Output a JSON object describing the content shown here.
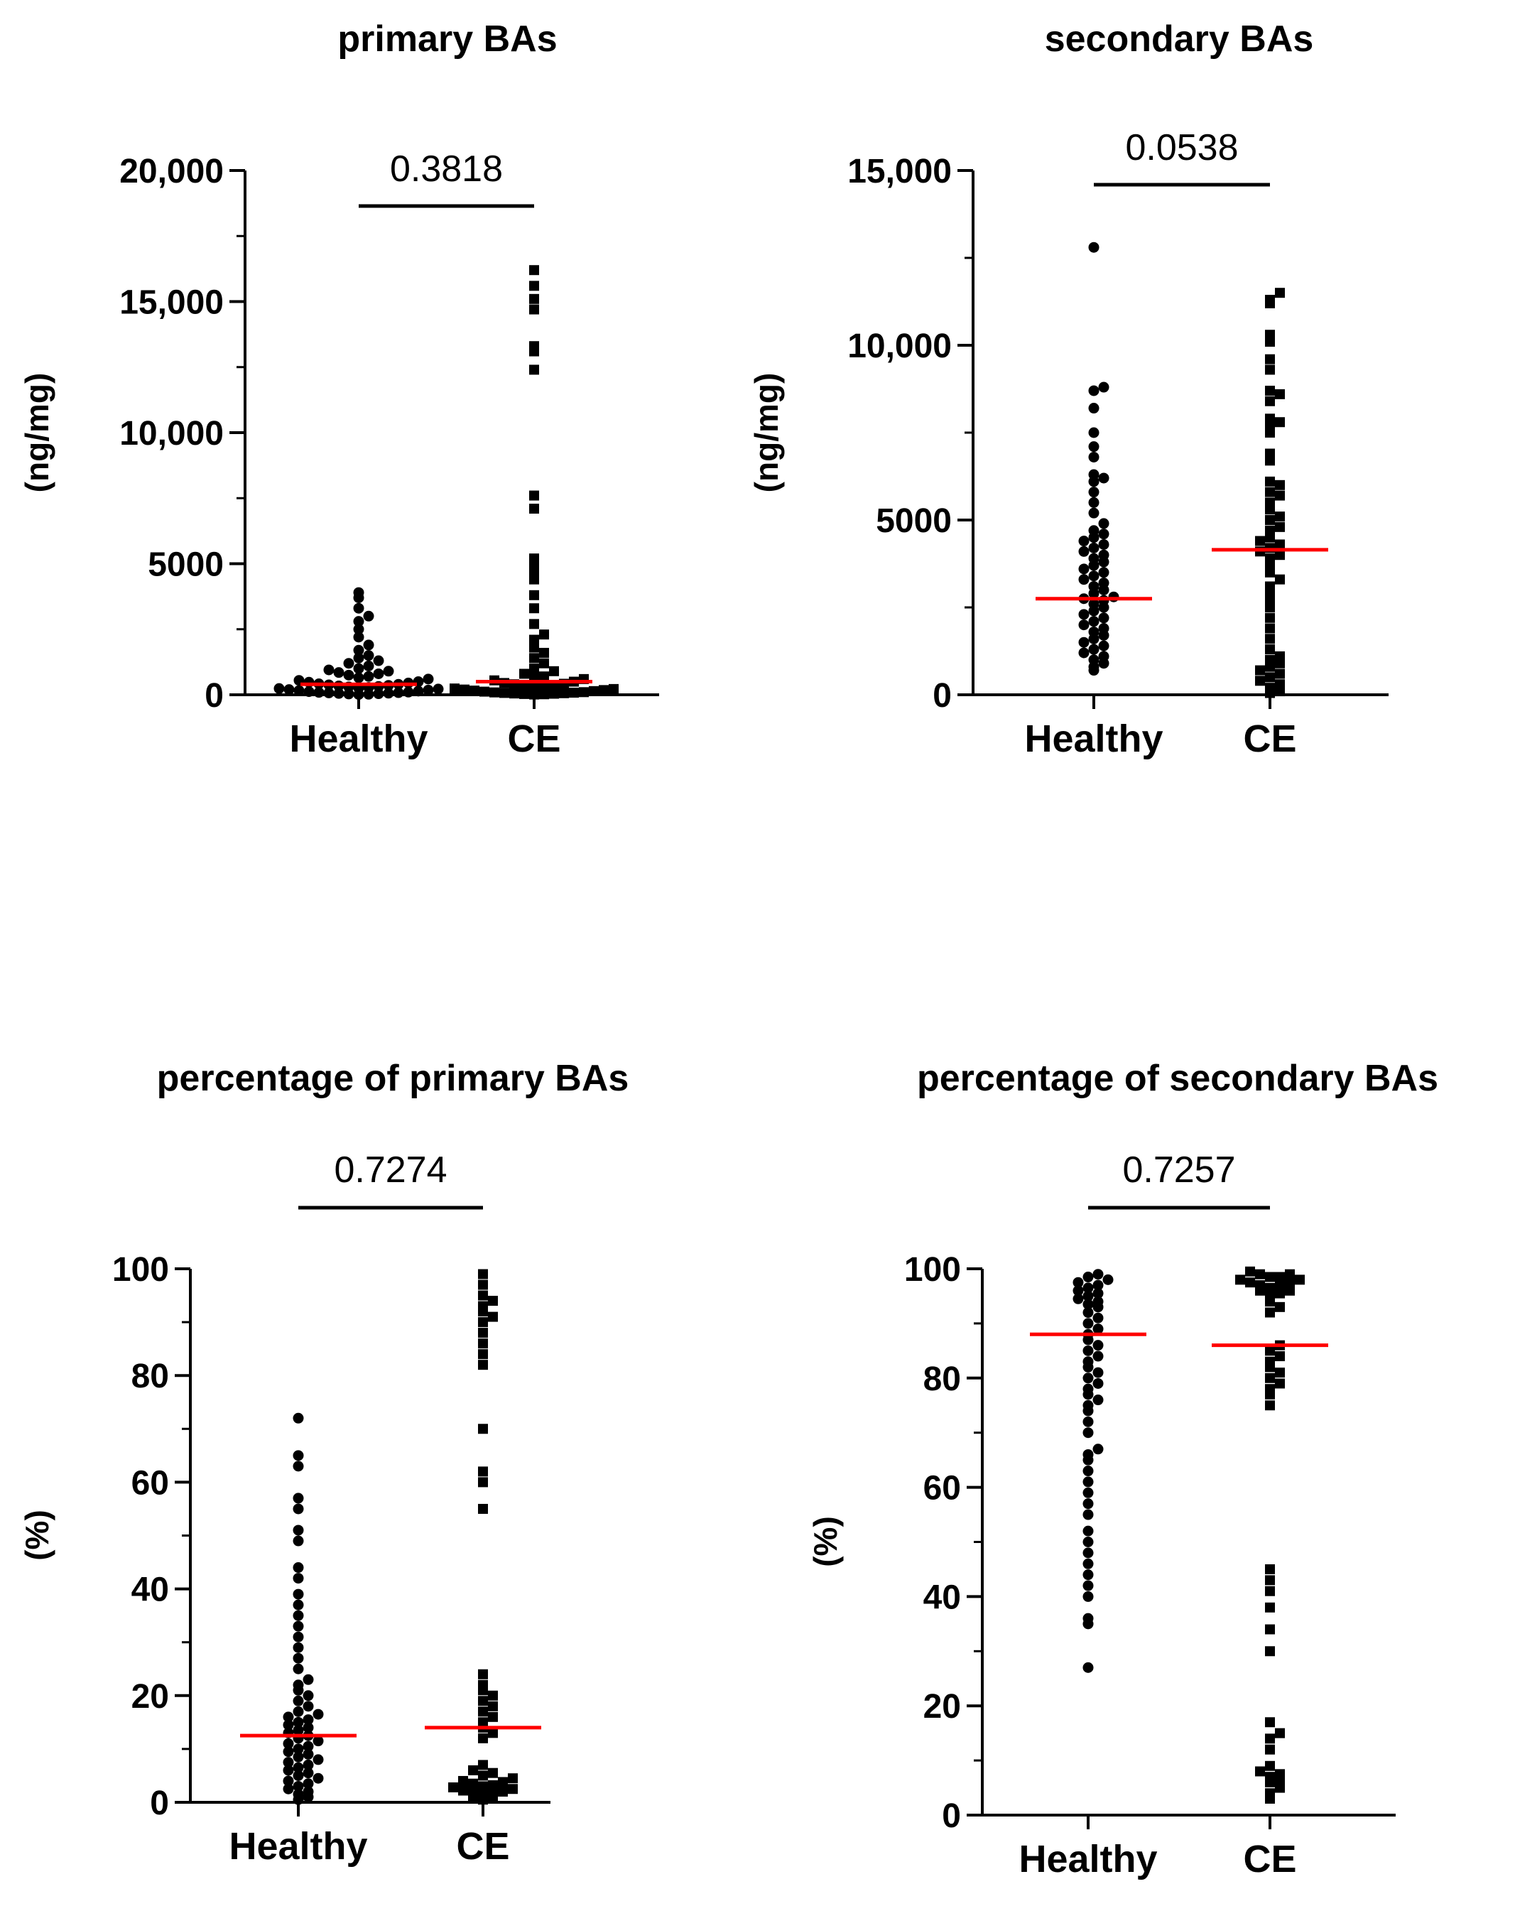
{
  "chart_data": [
    {
      "type": "scatter",
      "title": "primary BAs",
      "ylabel": "(ng/mg)",
      "categories": [
        "Healthy",
        "CE"
      ],
      "ylim": [
        0,
        20000
      ],
      "yticks": [
        {
          "v": 0,
          "label": "0"
        },
        {
          "v": 5000,
          "label": "5000"
        },
        {
          "v": 10000,
          "label": "10,000"
        },
        {
          "v": 15000,
          "label": "15,000"
        },
        {
          "v": 20000,
          "label": "20,000"
        }
      ],
      "p_value": "0.3818",
      "median_color": "#ff0000",
      "series": [
        {
          "name": "Healthy",
          "marker": "circle",
          "median": 400,
          "values": [
            3900,
            3700,
            3300,
            3000,
            2800,
            2500,
            2200,
            1900,
            1700,
            1500,
            1400,
            1300,
            1200,
            1100,
            1000,
            950,
            900,
            850,
            800,
            750,
            700,
            650,
            600,
            550,
            500,
            480,
            450,
            420,
            400,
            380,
            360,
            340,
            320,
            300,
            280,
            260,
            240,
            220,
            200,
            180,
            160,
            140,
            120,
            100,
            90,
            80,
            70,
            60,
            50,
            40,
            30,
            20,
            10
          ]
        },
        {
          "name": "CE",
          "marker": "square",
          "median": 500,
          "values": [
            16200,
            15600,
            15100,
            14700,
            13300,
            13100,
            12400,
            7600,
            7100,
            5200,
            5000,
            4700,
            4400,
            3800,
            3300,
            2700,
            2300,
            2100,
            1800,
            1600,
            1400,
            1200,
            1000,
            900,
            800,
            700,
            650,
            600,
            550,
            500,
            450,
            420,
            400,
            350,
            300,
            280,
            260,
            240,
            220,
            200,
            180,
            160,
            140,
            120,
            100,
            90,
            80,
            70,
            60,
            50,
            40,
            30,
            20,
            10
          ]
        }
      ]
    },
    {
      "type": "scatter",
      "title": "secondary BAs",
      "ylabel": "(ng/mg)",
      "categories": [
        "Healthy",
        "CE"
      ],
      "ylim": [
        0,
        15000
      ],
      "yticks": [
        {
          "v": 0,
          "label": "0"
        },
        {
          "v": 5000,
          "label": "5000"
        },
        {
          "v": 10000,
          "label": "10,000"
        },
        {
          "v": 15000,
          "label": "15,000"
        }
      ],
      "p_value": "0.0538",
      "median_color": "#ff0000",
      "series": [
        {
          "name": "Healthy",
          "marker": "circle",
          "median": 2750,
          "values": [
            12800,
            8800,
            8700,
            8200,
            7500,
            7100,
            6800,
            6300,
            6200,
            6100,
            5800,
            5500,
            5200,
            4900,
            4700,
            4600,
            4500,
            4400,
            4300,
            4200,
            4100,
            4000,
            3900,
            3800,
            3700,
            3600,
            3500,
            3400,
            3300,
            3200,
            3100,
            3000,
            2900,
            2800,
            2750,
            2700,
            2600,
            2500,
            2400,
            2300,
            2200,
            2100,
            2000,
            1900,
            1800,
            1700,
            1600,
            1500,
            1400,
            1300,
            1200,
            1100,
            1000,
            900,
            800,
            700
          ]
        },
        {
          "name": "CE",
          "marker": "square",
          "median": 4150,
          "values": [
            11500,
            11300,
            11200,
            10300,
            10100,
            9600,
            9300,
            8700,
            8600,
            8400,
            7900,
            7800,
            7700,
            7500,
            6900,
            6700,
            6100,
            6000,
            5800,
            5700,
            5500,
            5300,
            5100,
            5000,
            4800,
            4700,
            4500,
            4400,
            4300,
            4200,
            4100,
            4000,
            3900,
            3700,
            3500,
            3300,
            3100,
            2900,
            2700,
            2500,
            2200,
            1900,
            1600,
            1300,
            1100,
            1000,
            900,
            800,
            700,
            600,
            500,
            400,
            300,
            200,
            100,
            50
          ]
        }
      ]
    },
    {
      "type": "scatter",
      "title": "percentage of primary BAs",
      "ylabel": "(%)",
      "categories": [
        "Healthy",
        "CE"
      ],
      "ylim": [
        0,
        100
      ],
      "yticks": [
        {
          "v": 0,
          "label": "0"
        },
        {
          "v": 20,
          "label": "20"
        },
        {
          "v": 40,
          "label": "40"
        },
        {
          "v": 60,
          "label": "60"
        },
        {
          "v": 80,
          "label": "80"
        },
        {
          "v": 100,
          "label": "100"
        }
      ],
      "p_value": "0.7274",
      "median_color": "#ff0000",
      "series": [
        {
          "name": "Healthy",
          "marker": "circle",
          "median": 12.5,
          "values": [
            72,
            65,
            63,
            57,
            55,
            51,
            49,
            44,
            42,
            39,
            37,
            35,
            33,
            31,
            29,
            27,
            25,
            23,
            22,
            21,
            20,
            19,
            18,
            17,
            16.5,
            16,
            15.5,
            15,
            14.5,
            14,
            13.5,
            13,
            12.5,
            12,
            11.5,
            11,
            10.5,
            10,
            9.5,
            9,
            8.5,
            8,
            7.5,
            7,
            6.5,
            6,
            5.5,
            5,
            4.5,
            4,
            3.5,
            3,
            2.5,
            2,
            1.5,
            1,
            0.5
          ]
        },
        {
          "name": "CE",
          "marker": "square",
          "median": 14,
          "values": [
            99,
            97,
            95,
            94,
            93,
            92,
            91,
            90,
            88,
            86,
            84,
            82,
            70,
            62,
            60,
            55,
            24,
            22,
            21,
            20,
            19,
            18,
            17,
            16,
            15,
            14,
            13,
            12,
            7,
            6,
            5.5,
            5,
            4.5,
            4,
            3.8,
            3.5,
            3.2,
            3,
            2.8,
            2.5,
            2.2,
            2,
            1.8,
            1.5,
            1.2,
            1,
            0.8,
            0.5
          ]
        }
      ]
    },
    {
      "type": "scatter",
      "title": "percentage of secondary BAs",
      "ylabel": "(%)",
      "categories": [
        "Healthy",
        "CE"
      ],
      "ylim": [
        0,
        100
      ],
      "yticks": [
        {
          "v": 0,
          "label": "0"
        },
        {
          "v": 20,
          "label": "20"
        },
        {
          "v": 40,
          "label": "40"
        },
        {
          "v": 60,
          "label": "60"
        },
        {
          "v": 80,
          "label": "80"
        },
        {
          "v": 100,
          "label": "100"
        }
      ],
      "p_value": "0.7257",
      "median_color": "#ff0000",
      "series": [
        {
          "name": "Healthy",
          "marker": "circle",
          "median": 88,
          "values": [
            99,
            98.5,
            98,
            97.5,
            97,
            96.5,
            96,
            95.5,
            95,
            94.5,
            94,
            93.5,
            93,
            92,
            91,
            90,
            89,
            88,
            87,
            86,
            85,
            84,
            83,
            82,
            81,
            80,
            79,
            78,
            77,
            76,
            75,
            74,
            72,
            70,
            67,
            66,
            65,
            63,
            61,
            59,
            57,
            55,
            52,
            50,
            48,
            46,
            44,
            42,
            40,
            36,
            35,
            27
          ]
        },
        {
          "name": "CE",
          "marker": "square",
          "median": 86,
          "values": [
            99.5,
            99,
            99,
            98.5,
            98.5,
            98,
            98,
            97.5,
            97.5,
            97,
            97,
            96.5,
            96,
            96,
            95.5,
            95,
            94,
            93,
            92,
            86,
            85,
            84,
            83,
            82,
            81,
            80,
            79,
            78,
            77,
            75,
            45,
            43,
            41,
            38,
            34,
            30,
            17,
            15,
            14,
            12,
            9,
            8,
            7.5,
            7,
            6.5,
            6,
            5,
            4,
            3
          ]
        }
      ]
    }
  ]
}
